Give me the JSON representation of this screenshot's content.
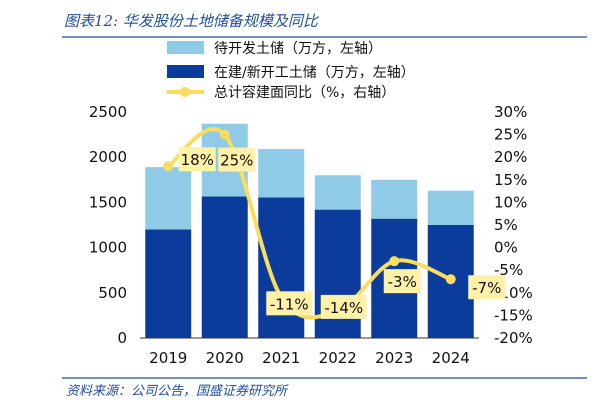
{
  "header": {
    "title": "图表12: 华发股份土地储备规模及同比"
  },
  "footer": {
    "source": "资料来源：公司公告，国盛证券研究所"
  },
  "chart_data": {
    "type": "bar",
    "stacked": true,
    "categories": [
      "2019",
      "2020",
      "2021",
      "2022",
      "2023",
      "2024"
    ],
    "series": [
      {
        "name": "在建/新开工土储（万方，左轴）",
        "axis": "left",
        "color": "#0b3b9b",
        "values": [
          1200,
          1565,
          1555,
          1420,
          1320,
          1250
        ]
      },
      {
        "name": "待开发土储（万方，左轴）",
        "axis": "left",
        "color": "#8fcbe6",
        "values": [
          690,
          805,
          535,
          380,
          430,
          380
        ]
      },
      {
        "name": "总计容建面同比（%，右轴）",
        "axis": "right",
        "type": "line",
        "color": "#fbdc5c",
        "values": [
          18,
          25,
          -11,
          -14,
          -3,
          -7
        ],
        "labels": [
          "18%",
          "25%",
          "-11%",
          "-14%",
          "-3%",
          "-7%"
        ]
      }
    ],
    "left_axis": {
      "min": 0,
      "max": 2500,
      "step": 500,
      "ticks": [
        "0",
        "500",
        "1000",
        "1500",
        "2000",
        "2500"
      ]
    },
    "right_axis": {
      "min": -20,
      "max": 30,
      "step": 5,
      "ticks": [
        "-20%",
        "-15%",
        "-10%",
        "-5%",
        "0%",
        "5%",
        "10%",
        "15%",
        "20%",
        "25%",
        "30%"
      ]
    },
    "legend": [
      "待开发土储（万方，左轴）",
      "在建/新开工土储（万方，左轴）",
      "总计容建面同比（%，右轴）"
    ],
    "legend_position": "top",
    "grid": false
  }
}
